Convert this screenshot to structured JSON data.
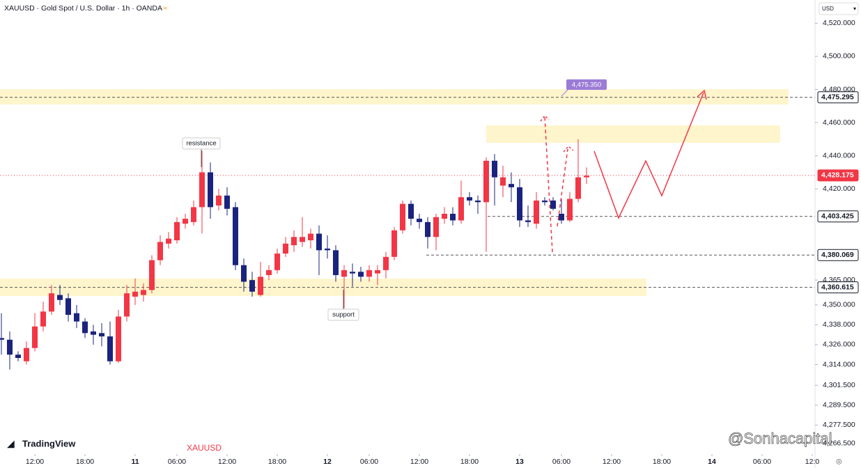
{
  "header": {
    "title": "XAUUSD · Gold Spot / U.S. Dollar · 1h · OANDA",
    "currency": "USD"
  },
  "watermarks": {
    "brand": "TradingView",
    "symbol": "XAUUSD",
    "author": "@Sonhacapital"
  },
  "annotations": {
    "resistance": "resistance",
    "support": "support",
    "target": "4,475.350"
  },
  "chart_data": {
    "type": "candlestick",
    "up_color": "#f23645",
    "down_color": "#1a237e",
    "x": [
      -4,
      -3,
      -2,
      -1,
      0,
      1,
      2,
      3,
      4,
      5,
      6,
      7,
      8,
      9,
      10,
      11,
      12,
      13,
      14,
      15,
      16,
      17,
      18,
      19,
      20,
      21,
      22,
      23,
      24,
      25,
      26,
      27,
      28,
      29,
      30,
      31,
      32,
      33,
      34,
      35,
      36,
      37,
      38,
      39,
      40,
      41,
      42,
      43,
      44,
      45,
      46,
      47,
      48,
      49,
      50,
      51,
      52,
      53,
      54,
      55,
      56,
      57,
      58,
      59,
      60,
      61,
      62,
      63,
      64,
      65,
      66
    ],
    "open": [
      4330,
      4329,
      4320,
      4316,
      4324,
      4337,
      4346,
      4356,
      4354,
      4345,
      4340,
      4334,
      4333,
      4331,
      4316,
      4343,
      4355,
      4356,
      4359,
      4377,
      4387,
      4389,
      4399,
      4400,
      4409,
      4430,
      4410,
      4416,
      4409,
      4374,
      4365,
      4356,
      4368,
      4371,
      4381,
      4386,
      4388,
      4389,
      4393,
      4384,
      4383,
      4367,
      4370,
      4370,
      4367,
      4369,
      4371,
      4379,
      4395,
      4411,
      4402,
      4400,
      4391,
      4402,
      4405,
      4401,
      4415,
      4413,
      4412,
      4437,
      4422,
      4423,
      4421,
      4401,
      4399,
      4413,
      4413,
      4405,
      4401,
      4414,
      4427
    ],
    "high": [
      4345,
      4334,
      4322,
      4328,
      4345,
      4352,
      4362,
      4362,
      4357,
      4350,
      4342,
      4338,
      4339,
      4340,
      4347,
      4362,
      4366,
      4363,
      4380,
      4392,
      4394,
      4403,
      4405,
      4413,
      4443,
      4436,
      4420,
      4421,
      4412,
      4378,
      4370,
      4376,
      4374,
      4384,
      4391,
      4395,
      4403,
      4396,
      4398,
      4392,
      4386,
      4374,
      4375,
      4373,
      4374,
      4374,
      4382,
      4397,
      4413,
      4413,
      4405,
      4403,
      4405,
      4409,
      4409,
      4425,
      4418,
      4416,
      4439,
      4441,
      4434,
      4430,
      4426,
      4410,
      4418,
      4415,
      4415,
      4414,
      4418,
      4450,
      4433
    ],
    "low": [
      4320,
      4311,
      4316,
      4314,
      4322,
      4334,
      4344,
      4350,
      4340,
      4336,
      4330,
      4326,
      4325,
      4314,
      4315,
      4340,
      4350,
      4352,
      4357,
      4374,
      4384,
      4387,
      4396,
      4398,
      4393,
      4402,
      4407,
      4404,
      4371,
      4358,
      4355,
      4355,
      4365,
      4369,
      4379,
      4382,
      4385,
      4384,
      4368,
      4378,
      4364,
      4348,
      4361,
      4364,
      4364,
      4362,
      4366,
      4377,
      4393,
      4398,
      4396,
      4384,
      4383,
      4399,
      4398,
      4399,
      4410,
      4405,
      4382,
      4410,
      4415,
      4412,
      4397,
      4397,
      4396,
      4410,
      4407,
      4399,
      4400,
      4412,
      4423
    ],
    "close": [
      4329,
      4320,
      4318,
      4324,
      4337,
      4346,
      4357,
      4353,
      4344,
      4340,
      4333,
      4332,
      4331,
      4316,
      4343,
      4357,
      4358,
      4359,
      4377,
      4388,
      4390,
      4400,
      4402,
      4409,
      4430,
      4409,
      4416,
      4408,
      4374,
      4364,
      4358,
      4367,
      4371,
      4381,
      4387,
      4391,
      4391,
      4393,
      4383,
      4383,
      4368,
      4371,
      4369,
      4367,
      4371,
      4371,
      4379,
      4395,
      4411,
      4402,
      4400,
      4391,
      4403,
      4405,
      4401,
      4415,
      4413,
      4412,
      4437,
      4427,
      4427,
      4421,
      4401,
      4400,
      4413,
      4412,
      4408,
      4401,
      4414,
      4427,
      4428
    ],
    "xlim": [
      -4,
      93
    ],
    "xticks": [
      {
        "value": 0,
        "label": "12:00"
      },
      {
        "value": 6,
        "label": "18:00"
      },
      {
        "value": 12,
        "label": "11"
      },
      {
        "value": 17,
        "label": "06:00"
      },
      {
        "value": 23,
        "label": "12:00"
      },
      {
        "value": 29,
        "label": "18:00"
      },
      {
        "value": 35,
        "label": "12"
      },
      {
        "value": 40,
        "label": "06:00"
      },
      {
        "value": 46,
        "label": "12:00"
      },
      {
        "value": 52,
        "label": "18:00"
      },
      {
        "value": 58,
        "label": "13"
      },
      {
        "value": 63,
        "label": "06:00"
      },
      {
        "value": 69,
        "label": "12:00"
      },
      {
        "value": 75,
        "label": "18:00"
      },
      {
        "value": 81,
        "label": "14"
      },
      {
        "value": 87,
        "label": "06:00"
      },
      {
        "value": 93,
        "label": "12:0"
      }
    ],
    "ylim": [
      4260,
      4534
    ],
    "yticks": [
      {
        "value": 4520,
        "label": "4,520.000"
      },
      {
        "value": 4500,
        "label": "4,500.000"
      },
      {
        "value": 4480,
        "label": "4,480.000"
      },
      {
        "value": 4460,
        "label": "4,460.000"
      },
      {
        "value": 4440,
        "label": "4,440.000"
      },
      {
        "value": 4420,
        "label": "4,420.000"
      },
      {
        "value": 4365,
        "label": "4,365.000"
      },
      {
        "value": 4350,
        "label": "4,350.000"
      },
      {
        "value": 4338,
        "label": "4,338.000"
      },
      {
        "value": 4326,
        "label": "4,326.000"
      },
      {
        "value": 4314,
        "label": "4,314.000"
      },
      {
        "value": 4301.5,
        "label": "4,301.500"
      },
      {
        "value": 4289.5,
        "label": "4,289.500"
      },
      {
        "value": 4277.5,
        "label": "4,277.500"
      },
      {
        "value": 4266.5,
        "label": "4,266.500"
      }
    ],
    "price_markers": [
      {
        "value": 4475.295,
        "label": "4,475.295",
        "color": "#131722"
      },
      {
        "value": 4428.175,
        "label": "4,428.175",
        "color": "#f23645"
      },
      {
        "value": 4403.425,
        "label": "4,403.425",
        "color": "#131722"
      },
      {
        "value": 4380.069,
        "label": "4,380.069",
        "color": "#131722"
      },
      {
        "value": 4360.615,
        "label": "4,360.615",
        "color": "#131722"
      }
    ]
  }
}
